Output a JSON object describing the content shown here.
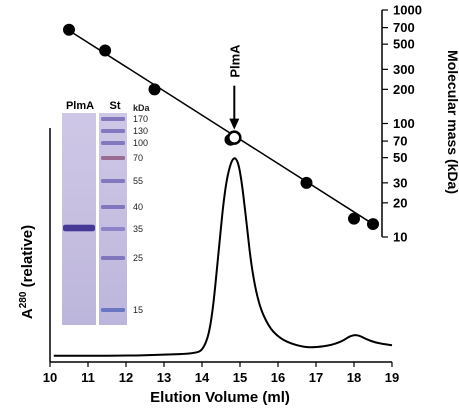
{
  "chart_data": [
    {
      "type": "line",
      "name": "elution-profile",
      "xlabel": "Elution Volume (ml)",
      "ylabel_main": "A",
      "ylabel_sup": "280",
      "ylabel_rest": " (relative)",
      "xlim": [
        10,
        19
      ],
      "xticks": [
        10,
        11,
        12,
        13,
        14,
        15,
        16,
        17,
        18,
        19
      ],
      "trace": {
        "x": [
          10.1,
          11,
          12,
          13,
          13.8,
          14.05,
          14.25,
          14.45,
          14.6,
          14.75,
          14.88,
          15.0,
          15.15,
          15.3,
          15.5,
          15.75,
          16.0,
          16.3,
          16.7,
          17.0,
          17.4,
          17.7,
          17.9,
          18.1,
          18.3,
          18.6,
          19.0
        ],
        "y": [
          0.03,
          0.03,
          0.03,
          0.035,
          0.04,
          0.06,
          0.18,
          0.55,
          0.82,
          0.95,
          0.98,
          0.92,
          0.7,
          0.45,
          0.27,
          0.17,
          0.12,
          0.09,
          0.07,
          0.07,
          0.08,
          0.1,
          0.125,
          0.13,
          0.11,
          0.09,
          0.08
        ]
      }
    },
    {
      "type": "scatter",
      "name": "calibration",
      "ylabel": "Molecular mass (kDa)",
      "yscale": "log",
      "ylim": [
        10,
        1000
      ],
      "yticks": [
        10,
        20,
        30,
        50,
        70,
        100,
        200,
        300,
        500,
        700,
        1000
      ],
      "ytick_labels": [
        "10",
        "20",
        "30",
        "50",
        "70",
        "100",
        "200",
        "300",
        "500",
        "700",
        "1000"
      ],
      "standards": {
        "x": [
          10.5,
          11.45,
          12.75,
          14.75,
          16.75,
          18.0,
          18.5
        ],
        "y": [
          670,
          440,
          200,
          72,
          30,
          14.5,
          13
        ]
      },
      "fit_line": {
        "x": [
          10.5,
          18.5
        ],
        "y": [
          660,
          13
        ]
      },
      "sample": {
        "label": "PlmA",
        "x": 14.85,
        "y": 75
      }
    }
  ],
  "gel": {
    "lane_labels": [
      "PlmA",
      "St"
    ],
    "unit_label": "kDa",
    "markers": [
      "170",
      "130",
      "100",
      "70",
      "55",
      "40",
      "35",
      "25",
      "15"
    ]
  }
}
